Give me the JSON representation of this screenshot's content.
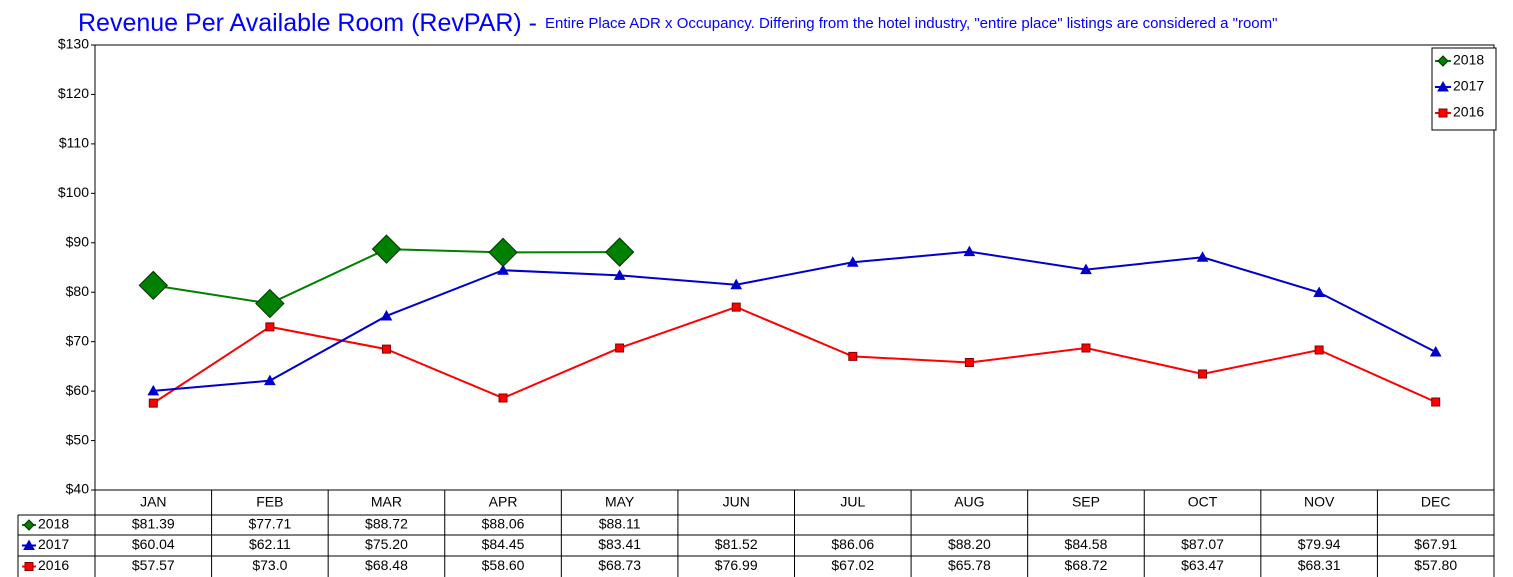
{
  "chart_data": {
    "type": "line",
    "title": "Revenue Per Available Room (RevPAR) -",
    "subtitle": "Entire Place ADR x Occupancy. Differing from the hotel industry, \"entire place\" listings are considered a \"room\"",
    "categories": [
      "JAN",
      "FEB",
      "MAR",
      "APR",
      "MAY",
      "JUN",
      "JUL",
      "AUG",
      "SEP",
      "OCT",
      "NOV",
      "DEC"
    ],
    "series": [
      {
        "name": "2018",
        "color": "#008000",
        "marker": "diamond",
        "values": [
          81.39,
          77.71,
          88.72,
          88.06,
          88.11,
          null,
          null,
          null,
          null,
          null,
          null,
          null
        ],
        "value_labels": [
          "$81.39",
          "$77.71",
          "$88.72",
          "$88.06",
          "$88.11",
          null,
          null,
          null,
          null,
          null,
          null,
          null
        ]
      },
      {
        "name": "2017",
        "color": "#0000cc",
        "marker": "triangle",
        "values": [
          60.04,
          62.11,
          75.2,
          84.45,
          83.41,
          81.52,
          86.06,
          88.2,
          84.58,
          87.07,
          79.94,
          67.91
        ],
        "value_labels": [
          "$60.04",
          "$62.11",
          "$75.20",
          "$84.45",
          "$83.41",
          "$81.52",
          "$86.06",
          "$88.20",
          "$84.58",
          "$87.07",
          "$79.94",
          "$67.91"
        ]
      },
      {
        "name": "2016",
        "color": "#ff0000",
        "marker": "square",
        "values": [
          57.57,
          73.0,
          68.48,
          58.6,
          68.73,
          76.99,
          67.02,
          65.78,
          68.72,
          63.47,
          68.31,
          57.8
        ],
        "value_labels": [
          "$57.57",
          "$73.0",
          "$68.48",
          "$58.60",
          "$68.73",
          "$76.99",
          "$67.02",
          "$65.78",
          "$68.72",
          "$63.47",
          "$68.31",
          "$57.80"
        ]
      }
    ],
    "ylim": [
      40,
      130
    ],
    "yticks": [
      {
        "value": 40,
        "label": "$40"
      },
      {
        "value": 50,
        "label": "$50"
      },
      {
        "value": 60,
        "label": "$60"
      },
      {
        "value": 70,
        "label": "$70"
      },
      {
        "value": 80,
        "label": "$80"
      },
      {
        "value": 90,
        "label": "$90"
      },
      {
        "value": 100,
        "label": "$100"
      },
      {
        "value": 110,
        "label": "$110"
      },
      {
        "value": 120,
        "label": "$120"
      },
      {
        "value": 130,
        "label": "$130"
      }
    ],
    "grid": false,
    "legend": "top-right"
  }
}
